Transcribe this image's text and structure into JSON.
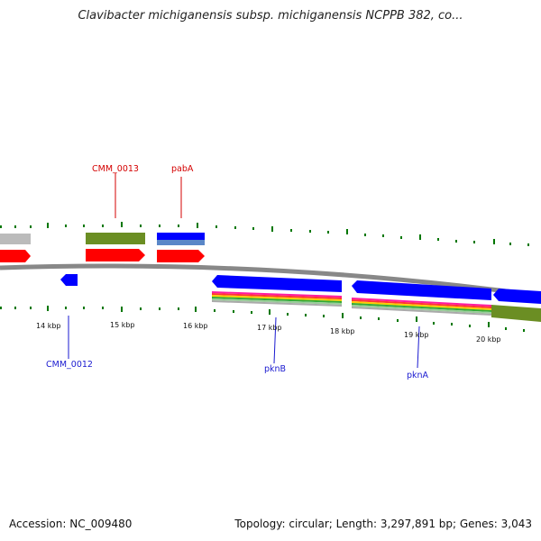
{
  "title": "Clavibacter michiganensis subsp. michiganensis NCPPB 382, co...",
  "footer": {
    "accession": "Accession: NC_009480",
    "summary": "Topology: circular; Length: 3,297,891 bp; Genes: 3,043"
  },
  "colors": {
    "forward_label": "#d40000",
    "reverse_label": "#1a1ad0",
    "cds_forward": "#ff0000",
    "cds_reverse": "#0000ff",
    "backbone": "#888888",
    "tick": "#007700",
    "gray_track": "#bbbbbb",
    "olive_track": "#6b8e23",
    "blue_track": "#0000ff",
    "steel_track": "#5a87c8"
  },
  "scale": {
    "ticks": [
      {
        "label": "14 kbp"
      },
      {
        "label": "15 kbp"
      },
      {
        "label": "16 kbp"
      },
      {
        "label": "17 kbp"
      },
      {
        "label": "18 kbp"
      },
      {
        "label": "19 kbp"
      },
      {
        "label": "20 kbp"
      }
    ]
  },
  "genes": [
    {
      "name": "CMM_0013",
      "strand": "forward"
    },
    {
      "name": "pabA",
      "strand": "forward"
    },
    {
      "name": "CMM_0012",
      "strand": "reverse"
    },
    {
      "name": "pknB",
      "strand": "reverse"
    },
    {
      "name": "pknA",
      "strand": "reverse"
    }
  ]
}
